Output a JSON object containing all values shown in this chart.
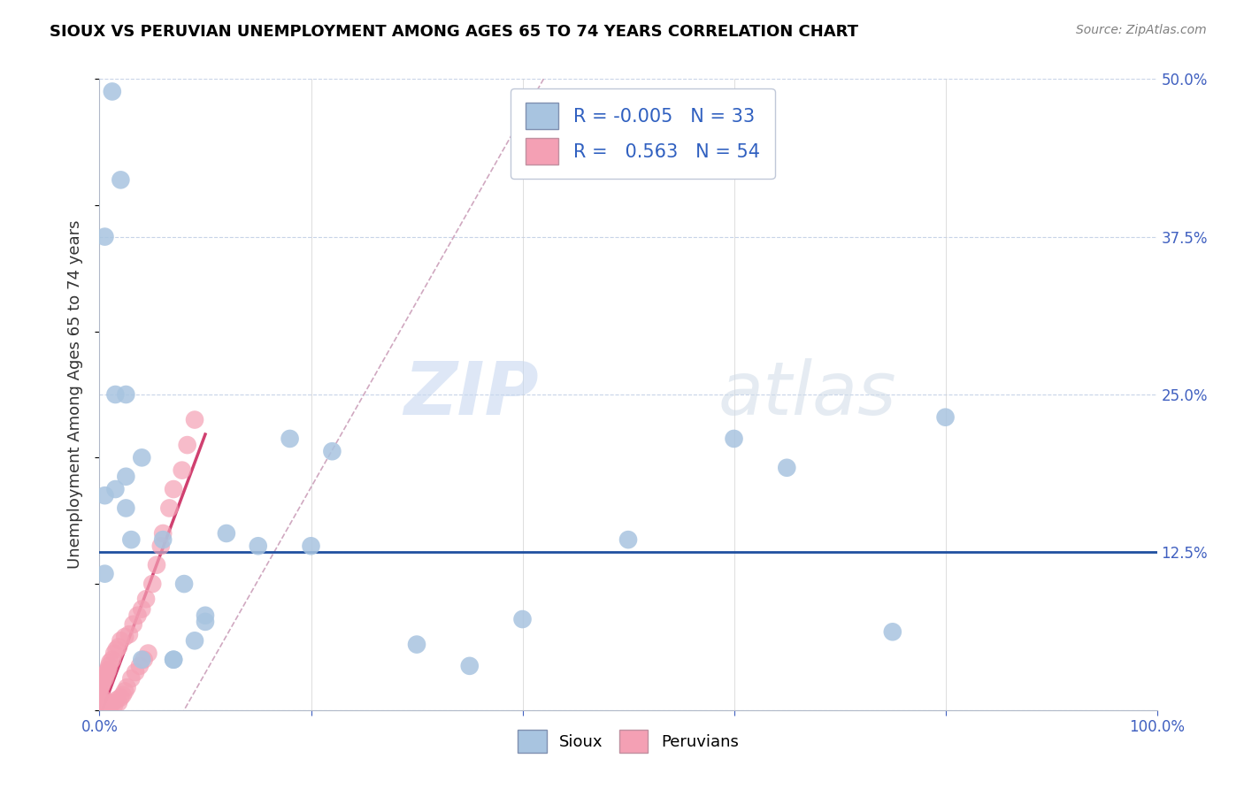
{
  "title": "SIOUX VS PERUVIAN UNEMPLOYMENT AMONG AGES 65 TO 74 YEARS CORRELATION CHART",
  "source": "Source: ZipAtlas.com",
  "ylabel": "Unemployment Among Ages 65 to 74 years",
  "xlim": [
    0,
    1.0
  ],
  "ylim": [
    0,
    0.5
  ],
  "xticks": [
    0.0,
    0.2,
    0.4,
    0.6,
    0.8,
    1.0
  ],
  "xticklabels": [
    "0.0%",
    "",
    "",
    "",
    "",
    "100.0%"
  ],
  "yticks": [
    0.0,
    0.125,
    0.25,
    0.375,
    0.5
  ],
  "yticklabels": [
    "",
    "12.5%",
    "25.0%",
    "37.5%",
    "50.0%"
  ],
  "watermark_zip": "ZIP",
  "watermark_atlas": "atlas",
  "legend_r_sioux": "-0.005",
  "legend_n_sioux": "33",
  "legend_r_peruvian": "0.563",
  "legend_n_peruvian": "54",
  "sioux_color": "#a8c4e0",
  "peruvian_color": "#f4a0b4",
  "trend_sioux_color": "#d0a0b8",
  "trend_peruvian_color": "#d04070",
  "hline_color": "#2050a0",
  "grid_color": "#c8d4e8",
  "sioux_x": [
    0.012,
    0.02,
    0.005,
    0.015,
    0.025,
    0.04,
    0.025,
    0.015,
    0.005,
    0.025,
    0.08,
    0.15,
    0.2,
    0.22,
    0.18,
    0.3,
    0.35,
    0.4,
    0.5,
    0.6,
    0.65,
    0.75,
    0.8,
    0.005,
    0.03,
    0.06,
    0.1,
    0.12,
    0.09,
    0.07,
    0.04,
    0.07,
    0.1
  ],
  "sioux_y": [
    0.49,
    0.42,
    0.375,
    0.25,
    0.25,
    0.2,
    0.185,
    0.175,
    0.17,
    0.16,
    0.1,
    0.13,
    0.13,
    0.205,
    0.215,
    0.052,
    0.035,
    0.072,
    0.135,
    0.215,
    0.192,
    0.062,
    0.232,
    0.108,
    0.135,
    0.135,
    0.075,
    0.14,
    0.055,
    0.04,
    0.04,
    0.04,
    0.07
  ],
  "peruvian_x": [
    0.0,
    0.0,
    0.001,
    0.001,
    0.002,
    0.002,
    0.003,
    0.003,
    0.004,
    0.005,
    0.005,
    0.006,
    0.006,
    0.007,
    0.007,
    0.008,
    0.008,
    0.009,
    0.009,
    0.01,
    0.01,
    0.012,
    0.012,
    0.014,
    0.014,
    0.016,
    0.016,
    0.018,
    0.018,
    0.02,
    0.02,
    0.022,
    0.024,
    0.024,
    0.026,
    0.028,
    0.03,
    0.032,
    0.034,
    0.036,
    0.038,
    0.04,
    0.042,
    0.044,
    0.046,
    0.05,
    0.054,
    0.058,
    0.06,
    0.066,
    0.07,
    0.078,
    0.083,
    0.09
  ],
  "peruvian_y": [
    0.008,
    0.015,
    0.005,
    0.018,
    0.003,
    0.02,
    0.006,
    0.022,
    0.004,
    0.008,
    0.025,
    0.006,
    0.028,
    0.004,
    0.03,
    0.002,
    0.032,
    0.005,
    0.035,
    0.003,
    0.038,
    0.006,
    0.04,
    0.004,
    0.045,
    0.008,
    0.048,
    0.006,
    0.05,
    0.01,
    0.055,
    0.012,
    0.015,
    0.058,
    0.018,
    0.06,
    0.025,
    0.068,
    0.03,
    0.075,
    0.035,
    0.08,
    0.04,
    0.088,
    0.045,
    0.1,
    0.115,
    0.13,
    0.14,
    0.16,
    0.175,
    0.19,
    0.21,
    0.23
  ]
}
